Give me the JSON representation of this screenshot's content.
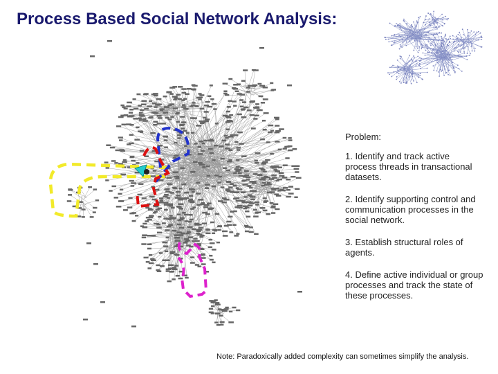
{
  "title": "Process Based Social Network Analysis:",
  "problem": {
    "heading": "Problem:",
    "points": [
      "1. Identify and track active process threads in transactional datasets.",
      "2. Identify supporting control and communication processes in the social network.",
      "3. Establish structural roles of agents.",
      "4. Define active individual or group processes and track the state of  these processes."
    ]
  },
  "note": "Note: Paradoxically added complexity can sometimes simplify the analysis.",
  "colors": {
    "title": "#1a1a6e",
    "highlight_blue": "#2233cc",
    "highlight_red": "#dd1111",
    "highlight_yellow": "#f2ea2a",
    "highlight_magenta": "#dd22cc",
    "agent_teal": "#22cccc",
    "network_edges": "#8a8a8a",
    "thumbnail_edges": "#8a94c8"
  }
}
